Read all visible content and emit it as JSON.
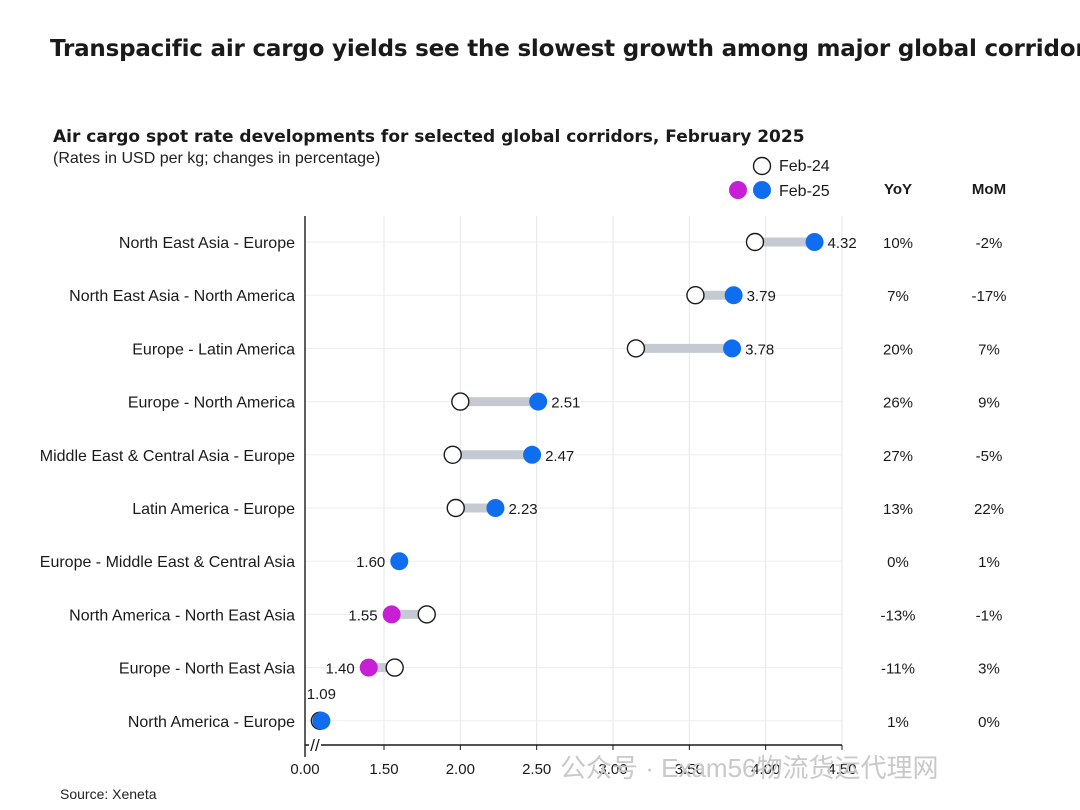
{
  "headline": "Transpacific air cargo yields see the slowest growth among major global corridors",
  "source": "Source: Xeneta",
  "watermark": "公众号 · Exam56物流货运代理网",
  "colors": {
    "feb25_up": "#0f6ef0",
    "feb25_down": "#c61fd6",
    "connector": "#c4c9d2",
    "feb24_fill": "#ffffff",
    "feb24_stroke": "#1a1a1a"
  },
  "chart_data": {
    "type": "dumbbell",
    "title": "Air cargo spot rate developments for selected global corridors, February 2025",
    "subtitle": "(Rates in USD per kg; changes in percentage)",
    "legend": [
      {
        "label": "Feb-24",
        "style": "open-circle"
      },
      {
        "label": "Feb-25",
        "style": "filled-circle"
      }
    ],
    "column_headers": {
      "yoy": "YoY",
      "mom": "MoM"
    },
    "xlim": [
      0,
      4.5
    ],
    "axis_break": "//",
    "xticks": [
      "0.00",
      "1.50",
      "2.00",
      "2.50",
      "3.00",
      "3.50",
      "4.00",
      "4.50"
    ],
    "rows": [
      {
        "corridor": "North East Asia - Europe",
        "feb24": 3.93,
        "feb25": 4.32,
        "label": "4.32",
        "yoy": "10%",
        "mom": "-2%"
      },
      {
        "corridor": "North East Asia - North America",
        "feb24": 3.54,
        "feb25": 3.79,
        "label": "3.79",
        "yoy": "7%",
        "mom": "-17%"
      },
      {
        "corridor": "Europe - Latin America",
        "feb24": 3.15,
        "feb25": 3.78,
        "label": "3.78",
        "yoy": "20%",
        "mom": "7%"
      },
      {
        "corridor": "Europe - North America",
        "feb24": 2.0,
        "feb25": 2.51,
        "label": "2.51",
        "yoy": "26%",
        "mom": "9%"
      },
      {
        "corridor": "Middle East & Central Asia - Europe",
        "feb24": 1.95,
        "feb25": 2.47,
        "label": "2.47",
        "yoy": "27%",
        "mom": "-5%"
      },
      {
        "corridor": "Latin America - Europe",
        "feb24": 1.97,
        "feb25": 2.23,
        "label": "2.23",
        "yoy": "13%",
        "mom": "22%"
      },
      {
        "corridor": "Europe - Middle East & Central Asia",
        "feb24": 1.6,
        "feb25": 1.6,
        "label": "1.60",
        "yoy": "0%",
        "mom": "1%"
      },
      {
        "corridor": "North America - North East Asia",
        "feb24": 1.78,
        "feb25": 1.55,
        "label": "1.55",
        "yoy": "-13%",
        "mom": "-1%"
      },
      {
        "corridor": "Europe - North East Asia",
        "feb24": 1.57,
        "feb25": 1.4,
        "label": "1.40",
        "yoy": "-11%",
        "mom": "3%"
      },
      {
        "corridor": "North America - Europe",
        "feb24": 1.08,
        "feb25": 1.09,
        "label": "1.09",
        "yoy": "1%",
        "mom": "0%"
      }
    ]
  }
}
